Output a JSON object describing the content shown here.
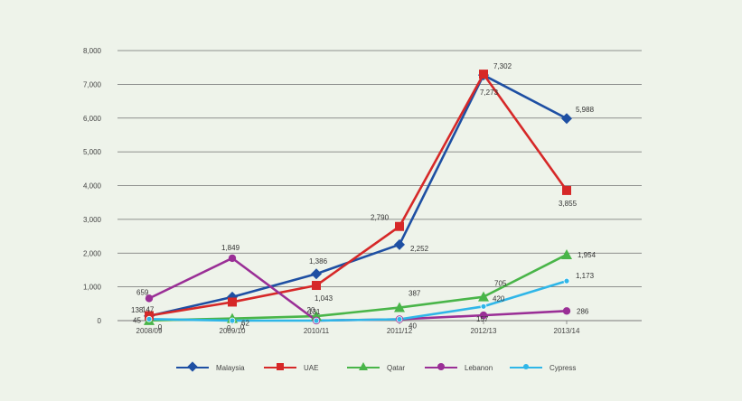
{
  "chart_data": {
    "type": "line",
    "categories": [
      "2008/09",
      "2009/10",
      "2010/11",
      "2011/12",
      "2012/13",
      "2013/14"
    ],
    "ylim": [
      0,
      8000
    ],
    "yticks": [
      0,
      1000,
      2000,
      3000,
      4000,
      5000,
      6000,
      7000,
      8000
    ],
    "ytick_labels": [
      "0",
      "1,000",
      "2,000",
      "3,000",
      "4,000",
      "5,000",
      "6,000",
      "7,000",
      "8,000"
    ],
    "grid": true,
    "legend_position": "bottom",
    "series": [
      {
        "name": "Malaysia",
        "color": "#1e4fa3",
        "marker": "diamond",
        "values": [
          138,
          700,
          1386,
          2252,
          7273,
          5988
        ],
        "labels": [
          "138",
          "",
          "1,386",
          "2,252",
          "7,273",
          "5,988"
        ]
      },
      {
        "name": "UAE",
        "color": "#d62828",
        "marker": "square",
        "values": [
          147,
          550,
          1043,
          2790,
          7302,
          3855
        ],
        "labels": [
          "147",
          "",
          "1,043",
          "2,790",
          "7,302",
          "3,855"
        ]
      },
      {
        "name": "Qatar",
        "color": "#49b549",
        "marker": "triangle",
        "values": [
          4,
          62,
          131,
          387,
          705,
          1954
        ],
        "labels": [
          "",
          "62",
          "131",
          "387",
          "705",
          "1,954"
        ]
      },
      {
        "name": "Lebanon",
        "color": "#9a2f96",
        "marker": "circle",
        "values": [
          659,
          1849,
          0,
          40,
          157,
          286
        ],
        "labels": [
          "659",
          "1,849",
          "",
          "",
          "157",
          "286"
        ]
      },
      {
        "name": "Cypress",
        "color": "#2fb6e8",
        "marker": "dot",
        "values": [
          45,
          0,
          0,
          40,
          420,
          1173
        ],
        "labels": [
          "45",
          "0",
          "",
          "40",
          "420",
          "1,173"
        ]
      }
    ],
    "extra_labels": [
      {
        "text": "0"
      },
      {
        "text": "0"
      },
      {
        "text": "20"
      }
    ]
  }
}
